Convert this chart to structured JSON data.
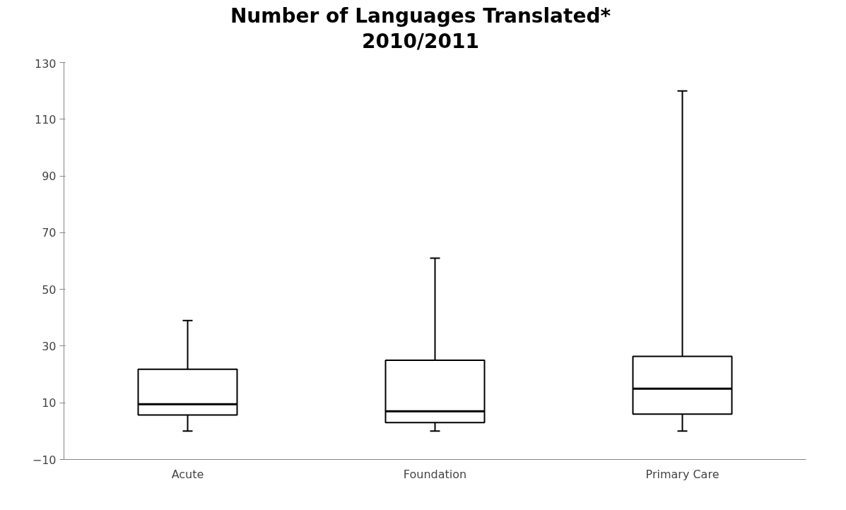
{
  "chart_data": {
    "type": "box",
    "title": "Number of Languages Translated*\n2010/2011",
    "categories": [
      "Acute",
      "Foundation",
      "Primary Care"
    ],
    "boxes": [
      {
        "low": 0,
        "q1": 5.7,
        "median": 9.5,
        "q3": 21.8,
        "high": 39
      },
      {
        "low": 0,
        "q1": 3,
        "median": 7,
        "q3": 25,
        "high": 61
      },
      {
        "low": 0,
        "q1": 6,
        "median": 15,
        "q3": 26.4,
        "high": 120
      }
    ],
    "ylim": [
      -10,
      130
    ],
    "yticks": [
      -10,
      10,
      30,
      50,
      70,
      90,
      110,
      130
    ],
    "grid": false
  }
}
